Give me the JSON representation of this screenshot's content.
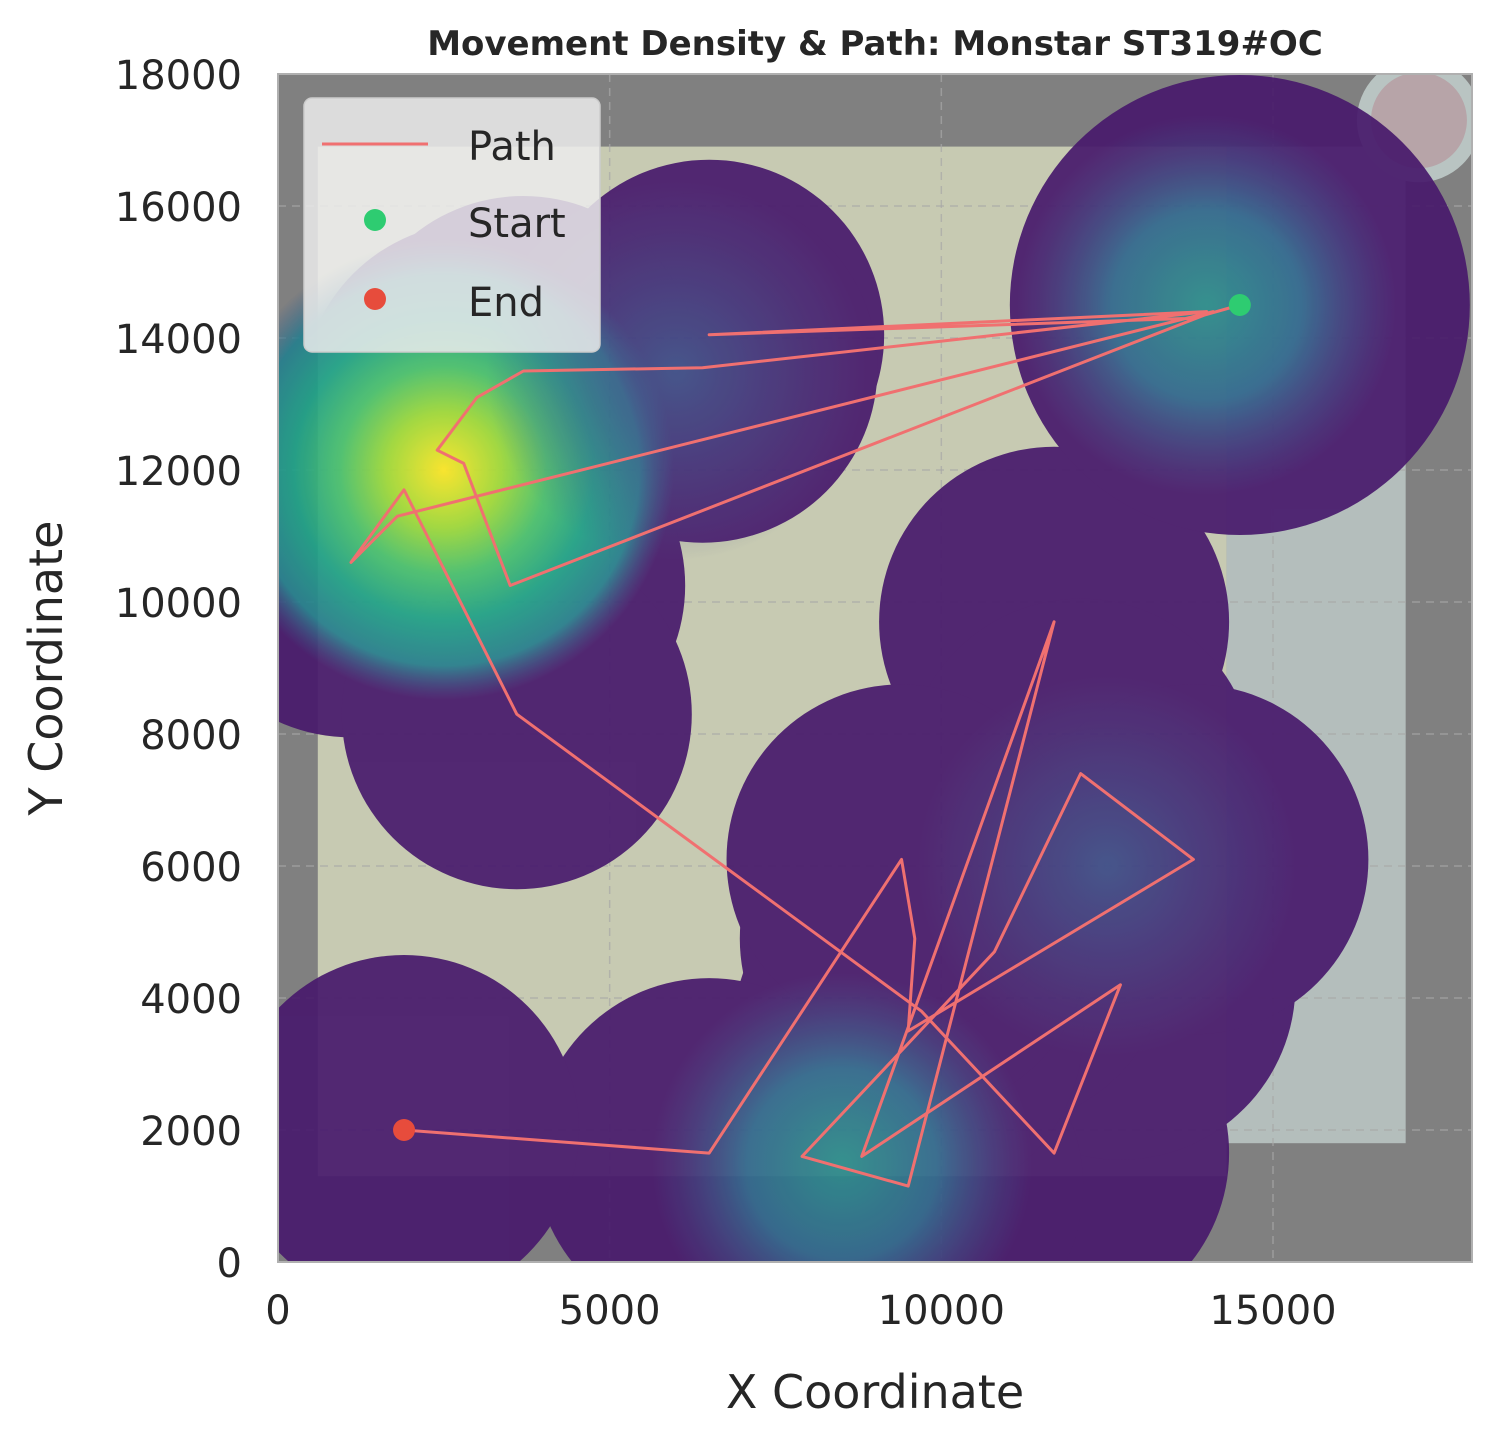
{
  "chart_data": {
    "type": "line",
    "title": "Movement Density & Path: Monstar ST319#OC",
    "xlabel": "X Coordinate",
    "ylabel": "Y Coordinate",
    "xlim": [
      0,
      18000
    ],
    "ylim": [
      0,
      18000
    ],
    "xticks": [
      0,
      5000,
      10000,
      15000
    ],
    "yticks": [
      0,
      2000,
      4000,
      6000,
      8000,
      10000,
      12000,
      14000,
      16000,
      18000
    ],
    "xtick_labels": [
      "0",
      "5000",
      "10000",
      "15000"
    ],
    "ytick_labels": [
      "0",
      "2000",
      "4000",
      "6000",
      "8000",
      "10000",
      "12000",
      "14000",
      "16000",
      "18000"
    ],
    "grid": true,
    "legend": {
      "position": "top-left",
      "entries": [
        "Path",
        "Start",
        "End"
      ]
    },
    "colors": {
      "path": "#f07070",
      "start": "#2ecc71",
      "end": "#e74c3c",
      "background": "#808080",
      "map_floor": "#cacdb4",
      "density_low": "#481a6c",
      "density_mid": "#31688e",
      "density_high": "#fde725"
    },
    "density_peaks": [
      {
        "x": 2500,
        "y": 12000,
        "level": 1.0
      },
      {
        "x": 8500,
        "y": 1500,
        "level": 0.45
      },
      {
        "x": 14000,
        "y": 14500,
        "level": 0.4
      },
      {
        "x": 12500,
        "y": 6000,
        "level": 0.35
      },
      {
        "x": 6000,
        "y": 13500,
        "level": 0.3
      }
    ],
    "series": [
      {
        "name": "Path",
        "x": [
          14500,
          13800,
          6500,
          14000,
          6400,
          3700,
          3000,
          2400,
          2800,
          3500,
          14100,
          1800,
          1100,
          1900,
          3600,
          9700,
          11700,
          12700,
          8800,
          11700,
          9500,
          7900,
          10800,
          12100,
          13800,
          9500,
          9600,
          9400,
          6500,
          1900
        ],
        "y": [
          14500,
          14300,
          14050,
          14400,
          13550,
          13500,
          13100,
          12300,
          12100,
          10250,
          14400,
          11300,
          10600,
          11700,
          8300,
          3800,
          1650,
          4200,
          1600,
          9700,
          1150,
          1600,
          4700,
          7400,
          6100,
          3500,
          4900,
          6100,
          1650,
          2000
        ]
      }
    ],
    "start_point": {
      "x": 14500,
      "y": 14500
    },
    "end_point": {
      "x": 1900,
      "y": 2000
    }
  }
}
